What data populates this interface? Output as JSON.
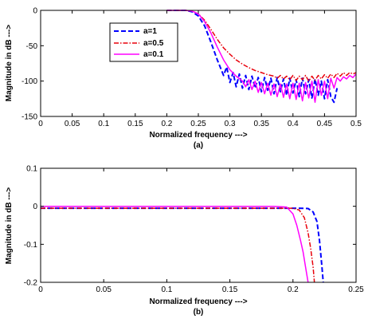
{
  "chart_data": [
    {
      "type": "line",
      "panel_label": "(a)",
      "xlabel": "Normalized frequency --->",
      "ylabel": "Magnitude in dB --->",
      "xlim": [
        0,
        0.5
      ],
      "ylim": [
        -150,
        0
      ],
      "xticks": [
        "0",
        "0.05",
        "0.1",
        "0.15",
        "0.2",
        "0.25",
        "0.3",
        "0.35",
        "0.4",
        "0.45",
        "0.5"
      ],
      "yticks": [
        "0",
        "-50",
        "-100",
        "-150"
      ],
      "grid": false,
      "legend_position": "upper-left-inside",
      "series": [
        {
          "name": "a=1",
          "color": "#0000ff",
          "style": "dashed",
          "x": [
            0.2,
            0.23,
            0.24,
            0.25,
            0.26,
            0.27,
            0.28,
            0.29,
            0.295,
            0.3,
            0.305,
            0.31,
            0.315,
            0.32,
            0.325,
            0.33,
            0.335,
            0.34,
            0.345,
            0.35,
            0.355,
            0.36,
            0.365,
            0.37,
            0.375,
            0.38,
            0.385,
            0.39,
            0.395,
            0.4,
            0.405,
            0.41,
            0.415,
            0.42,
            0.425,
            0.43,
            0.435,
            0.44,
            0.445,
            0.45,
            0.455,
            0.46,
            0.465,
            0.47
          ],
          "y": [
            0,
            0,
            -2,
            -8,
            -22,
            -45,
            -70,
            -92,
            -80,
            -102,
            -88,
            -108,
            -90,
            -110,
            -92,
            -112,
            -93,
            -110,
            -95,
            -115,
            -95,
            -113,
            -96,
            -118,
            -95,
            -115,
            -97,
            -120,
            -96,
            -117,
            -98,
            -122,
            -96,
            -118,
            -98,
            -124,
            -97,
            -120,
            -100,
            -125,
            -98,
            -122,
            -130,
            -110
          ]
        },
        {
          "name": "a=0.5",
          "color": "#e8000b",
          "style": "dashdot",
          "x": [
            0.2,
            0.23,
            0.24,
            0.25,
            0.26,
            0.27,
            0.28,
            0.29,
            0.3,
            0.31,
            0.32,
            0.33,
            0.34,
            0.35,
            0.36,
            0.37,
            0.375,
            0.38,
            0.385,
            0.39,
            0.395,
            0.4,
            0.405,
            0.41,
            0.415,
            0.42,
            0.425,
            0.43,
            0.435,
            0.44,
            0.445,
            0.45,
            0.455,
            0.46,
            0.465,
            0.47,
            0.475,
            0.48,
            0.485,
            0.49,
            0.495,
            0.5
          ],
          "y": [
            0,
            0,
            -1,
            -5,
            -14,
            -27,
            -41,
            -53,
            -62,
            -70,
            -76,
            -81,
            -85,
            -88,
            -91,
            -93,
            -96,
            -92,
            -97,
            -93,
            -98,
            -92,
            -99,
            -93,
            -98,
            -92,
            -100,
            -93,
            -99,
            -92,
            -97,
            -91,
            -96,
            -90,
            -95,
            -89,
            -93,
            -88,
            -92,
            -88,
            -90,
            -88
          ]
        },
        {
          "name": "a=0.1",
          "color": "#ff00ff",
          "style": "solid",
          "x": [
            0.2,
            0.23,
            0.24,
            0.25,
            0.26,
            0.27,
            0.28,
            0.29,
            0.3,
            0.31,
            0.32,
            0.325,
            0.33,
            0.335,
            0.34,
            0.345,
            0.35,
            0.355,
            0.36,
            0.365,
            0.37,
            0.375,
            0.38,
            0.385,
            0.39,
            0.395,
            0.4,
            0.405,
            0.41,
            0.415,
            0.42,
            0.425,
            0.43,
            0.435,
            0.44,
            0.445,
            0.45,
            0.455,
            0.46,
            0.465,
            0.47,
            0.475,
            0.48,
            0.485,
            0.49,
            0.495,
            0.5
          ],
          "y": [
            0,
            0,
            -1,
            -5,
            -16,
            -32,
            -52,
            -70,
            -84,
            -93,
            -100,
            -108,
            -98,
            -112,
            -100,
            -116,
            -102,
            -118,
            -103,
            -120,
            -104,
            -122,
            -104,
            -123,
            -104,
            -125,
            -103,
            -126,
            -103,
            -128,
            -102,
            -124,
            -100,
            -130,
            -98,
            -120,
            -100,
            -125,
            -96,
            -110,
            -95,
            -100,
            -94,
            -97,
            -92,
            -95,
            -90
          ]
        }
      ]
    },
    {
      "type": "line",
      "panel_label": "(b)",
      "xlabel": "Normalized frequency --->",
      "ylabel": "Magnitude in dB --->",
      "xlim": [
        0,
        0.25
      ],
      "ylim": [
        -0.2,
        0.1
      ],
      "xticks": [
        "0",
        "0.05",
        "0.1",
        "0.15",
        "0.2",
        "0.25"
      ],
      "yticks": [
        "0.1",
        "0",
        "-0.1",
        "-0.2"
      ],
      "grid": false,
      "series": [
        {
          "name": "a=1",
          "color": "#0000ff",
          "style": "dashed",
          "x": [
            0,
            0.19,
            0.205,
            0.212,
            0.216,
            0.219,
            0.221,
            0.223,
            0.224
          ],
          "y": [
            -0.005,
            -0.005,
            -0.005,
            -0.006,
            -0.015,
            -0.04,
            -0.09,
            -0.16,
            -0.2
          ]
        },
        {
          "name": "a=0.5",
          "color": "#e8000b",
          "style": "dashdot",
          "x": [
            0,
            0.19,
            0.2,
            0.205,
            0.209,
            0.212,
            0.214,
            0.216,
            0.217
          ],
          "y": [
            -0.005,
            -0.005,
            -0.005,
            -0.01,
            -0.03,
            -0.07,
            -0.11,
            -0.16,
            -0.2
          ]
        },
        {
          "name": "a=0.1",
          "color": "#ff00ff",
          "style": "solid",
          "x": [
            0,
            0.185,
            0.195,
            0.2,
            0.203,
            0.206,
            0.208,
            0.21,
            0.211,
            0.212
          ],
          "y": [
            0,
            0,
            -0.002,
            -0.02,
            -0.05,
            -0.09,
            -0.12,
            -0.16,
            -0.18,
            -0.2
          ]
        }
      ]
    }
  ]
}
